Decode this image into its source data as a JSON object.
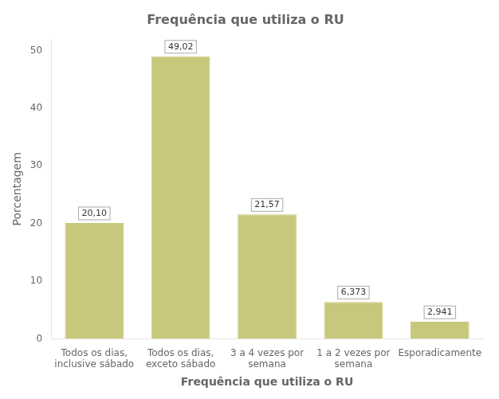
{
  "chart_data": {
    "type": "bar",
    "title": "Frequência que utiliza o RU",
    "xlabel": "Frequência que utiliza o RU",
    "ylabel": "Porcentagem",
    "categories": [
      "Todos os dias,\ninclusive sábado",
      "Todos os dias,\nexceto sábado",
      "3 a 4 vezes por\nsemana",
      "1 a 2 vezes por\nsemana",
      "Esporadicamente"
    ],
    "values": [
      20.1,
      49.02,
      21.57,
      6.373,
      2.941
    ],
    "value_labels": [
      "20,10",
      "49,02",
      "21,57",
      "6,373",
      "2,941"
    ],
    "data_labels": true,
    "color": "#c8c87c",
    "ylim": [
      0,
      52
    ],
    "yticks": [
      0,
      10,
      20,
      30,
      40,
      50
    ],
    "grid": false
  }
}
